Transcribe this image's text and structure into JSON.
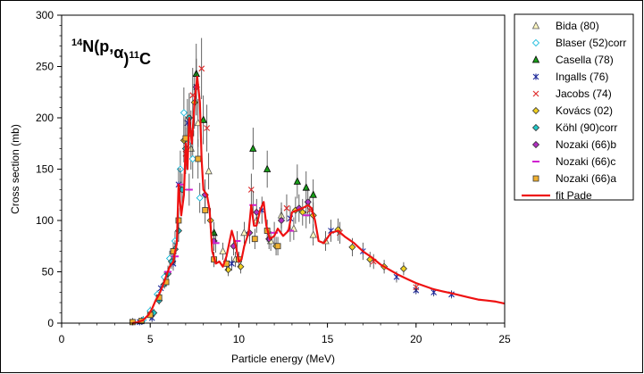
{
  "chart_data": {
    "type": "scatter",
    "title_parts": [
      "14",
      "N(p,",
      "α",
      ")",
      "11",
      "C"
    ],
    "xlabel": "Particle energy (MeV)",
    "ylabel": "Cross section (mb)",
    "xlim": [
      0,
      25
    ],
    "ylim": [
      0,
      300
    ],
    "x_ticks": [
      0,
      5,
      10,
      15,
      20,
      25
    ],
    "y_ticks": [
      0,
      50,
      100,
      150,
      200,
      250,
      300
    ],
    "grid": false,
    "legend_position": "right",
    "series": [
      {
        "name": "Bida (80)",
        "marker": "triangle-open",
        "color": "#b58900",
        "points": [
          [
            7.3,
            170
          ],
          [
            7.7,
            195
          ],
          [
            8.3,
            148
          ],
          [
            9.1,
            70
          ],
          [
            9.8,
            62
          ],
          [
            10.3,
            88
          ],
          [
            11.0,
            100
          ],
          [
            11.8,
            80
          ],
          [
            12.4,
            105
          ],
          [
            13.1,
            92
          ],
          [
            14.2,
            86
          ],
          [
            14.9,
            80
          ]
        ]
      },
      {
        "name": "Blaser (52)corr",
        "marker": "diamond-open",
        "color": "#00b4d8",
        "points": [
          [
            4.6,
            3
          ],
          [
            5.0,
            12
          ],
          [
            5.4,
            28
          ],
          [
            5.8,
            45
          ],
          [
            6.1,
            63
          ],
          [
            6.4,
            80
          ],
          [
            6.7,
            150
          ],
          [
            6.9,
            205
          ],
          [
            7.1,
            175
          ],
          [
            7.4,
            160
          ],
          [
            7.8,
            122
          ]
        ]
      },
      {
        "name": "Casella (78)",
        "marker": "triangle",
        "color": "#1a9e1a",
        "points": [
          [
            7.6,
            243
          ],
          [
            8.0,
            198
          ],
          [
            8.6,
            88
          ],
          [
            10.8,
            170
          ],
          [
            11.6,
            150
          ],
          [
            13.3,
            138
          ],
          [
            13.8,
            132
          ],
          [
            14.2,
            125
          ]
        ]
      },
      {
        "name": "Ingalls (76)",
        "marker": "star",
        "color": "#1f2a9a",
        "points": [
          [
            4.4,
            1
          ],
          [
            5.1,
            5
          ],
          [
            5.6,
            34
          ],
          [
            6.3,
            58
          ],
          [
            6.6,
            135
          ],
          [
            7.1,
            195
          ],
          [
            7.6,
            230
          ],
          [
            9.6,
            58
          ],
          [
            11.3,
            110
          ],
          [
            12.9,
            102
          ],
          [
            15.2,
            90
          ],
          [
            17.0,
            70
          ],
          [
            18.9,
            45
          ],
          [
            20.0,
            32
          ],
          [
            21.0,
            30
          ],
          [
            22.0,
            28
          ]
        ]
      },
      {
        "name": "Jacobs (74)",
        "marker": "cross",
        "color": "#e03030",
        "points": [
          [
            7.0,
            165
          ],
          [
            7.4,
            222
          ],
          [
            7.9,
            248
          ],
          [
            8.2,
            190
          ],
          [
            10.7,
            130
          ],
          [
            12.7,
            112
          ],
          [
            14.0,
            110
          ],
          [
            15.7,
            88
          ],
          [
            17.6,
            60
          ],
          [
            20.0,
            35
          ]
        ]
      },
      {
        "name": "Kovács (02)",
        "marker": "diamond",
        "color": "#f0d020",
        "points": [
          [
            6.9,
            178
          ],
          [
            7.2,
            200
          ],
          [
            7.5,
            215
          ],
          [
            8.4,
            100
          ],
          [
            9.4,
            52
          ],
          [
            10.1,
            55
          ],
          [
            12.1,
            75
          ],
          [
            13.2,
            110
          ],
          [
            13.6,
            108
          ],
          [
            14.2,
            105
          ],
          [
            15.6,
            91
          ],
          [
            16.4,
            74
          ],
          [
            17.4,
            62
          ],
          [
            18.2,
            55
          ],
          [
            19.3,
            53
          ]
        ]
      },
      {
        "name": "Köhl (90)corr",
        "marker": "diamond",
        "color": "#22c8c8",
        "points": [
          [
            5.2,
            10
          ],
          [
            5.5,
            22
          ],
          [
            5.8,
            38
          ],
          [
            6.0,
            48
          ],
          [
            6.2,
            60
          ],
          [
            6.4,
            72
          ],
          [
            6.6,
            90
          ],
          [
            6.8,
            130
          ],
          [
            7.0,
            170
          ],
          [
            7.2,
            200
          ]
        ]
      },
      {
        "name": "Nozaki (66)b",
        "marker": "diamond",
        "color": "#b030c0",
        "points": [
          [
            7.6,
            230
          ],
          [
            8.1,
            125
          ],
          [
            8.6,
            80
          ],
          [
            9.7,
            75
          ],
          [
            10.6,
            88
          ],
          [
            11.0,
            108
          ],
          [
            11.7,
            82
          ],
          [
            12.4,
            100
          ],
          [
            13.4,
            112
          ],
          [
            13.9,
            118
          ]
        ]
      },
      {
        "name": "Nozaki (66)c",
        "marker": "dash",
        "color": "#d020d0",
        "points": [
          [
            6.0,
            50
          ],
          [
            6.4,
            65
          ],
          [
            6.7,
            135
          ],
          [
            7.2,
            130
          ],
          [
            8.7,
            78
          ],
          [
            9.9,
            80
          ],
          [
            10.8,
            115
          ],
          [
            12.0,
            88
          ],
          [
            12.9,
            90
          ],
          [
            13.8,
            105
          ]
        ]
      },
      {
        "name": "Nozaki (66)a",
        "marker": "square",
        "color": "#f0b030",
        "points": [
          [
            4.0,
            1
          ],
          [
            4.5,
            2
          ],
          [
            5.0,
            8
          ],
          [
            5.5,
            25
          ],
          [
            5.9,
            40
          ],
          [
            6.3,
            70
          ],
          [
            6.6,
            100
          ],
          [
            7.0,
            180
          ],
          [
            7.3,
            185
          ],
          [
            7.7,
            160
          ],
          [
            8.1,
            110
          ],
          [
            8.6,
            62
          ],
          [
            9.3,
            58
          ],
          [
            10.0,
            62
          ],
          [
            10.9,
            82
          ],
          [
            11.6,
            90
          ],
          [
            12.2,
            75
          ]
        ]
      }
    ],
    "fit": {
      "name": "fit Pade",
      "color": "#ee1111",
      "points": [
        [
          4.0,
          0
        ],
        [
          4.3,
          1
        ],
        [
          4.6,
          3
        ],
        [
          4.9,
          8
        ],
        [
          5.1,
          14
        ],
        [
          5.3,
          22
        ],
        [
          5.5,
          28
        ],
        [
          5.7,
          36
        ],
        [
          5.9,
          46
        ],
        [
          6.1,
          55
        ],
        [
          6.3,
          60
        ],
        [
          6.5,
          78
        ],
        [
          6.6,
          135
        ],
        [
          6.75,
          105
        ],
        [
          6.9,
          125
        ],
        [
          7.0,
          175
        ],
        [
          7.1,
          150
        ],
        [
          7.2,
          200
        ],
        [
          7.35,
          175
        ],
        [
          7.5,
          215
        ],
        [
          7.65,
          240
        ],
        [
          7.8,
          215
        ],
        [
          7.9,
          160
        ],
        [
          8.0,
          130
        ],
        [
          8.2,
          125
        ],
        [
          8.35,
          110
        ],
        [
          8.5,
          70
        ],
        [
          8.7,
          58
        ],
        [
          8.9,
          60
        ],
        [
          9.1,
          55
        ],
        [
          9.3,
          65
        ],
        [
          9.6,
          90
        ],
        [
          9.8,
          78
        ],
        [
          10.0,
          60
        ],
        [
          10.15,
          62
        ],
        [
          10.3,
          75
        ],
        [
          10.55,
          88
        ],
        [
          10.7,
          115
        ],
        [
          10.85,
          95
        ],
        [
          11.0,
          95
        ],
        [
          11.2,
          110
        ],
        [
          11.4,
          118
        ],
        [
          11.55,
          95
        ],
        [
          11.75,
          82
        ],
        [
          12.0,
          85
        ],
        [
          12.2,
          92
        ],
        [
          12.5,
          85
        ],
        [
          12.8,
          90
        ],
        [
          13.0,
          108
        ],
        [
          13.3,
          110
        ],
        [
          13.6,
          112
        ],
        [
          13.9,
          115
        ],
        [
          14.1,
          112
        ],
        [
          14.3,
          100
        ],
        [
          14.5,
          80
        ],
        [
          14.8,
          78
        ],
        [
          15.2,
          88
        ],
        [
          15.6,
          90
        ],
        [
          16.0,
          84
        ],
        [
          16.5,
          78
        ],
        [
          17.0,
          70
        ],
        [
          17.5,
          64
        ],
        [
          18.0,
          57
        ],
        [
          18.5,
          52
        ],
        [
          19.0,
          47
        ],
        [
          19.5,
          43
        ],
        [
          20.0,
          39
        ],
        [
          20.5,
          36
        ],
        [
          21.0,
          33
        ],
        [
          21.5,
          31
        ],
        [
          22.0,
          29
        ],
        [
          22.5,
          27
        ],
        [
          23.0,
          25
        ],
        [
          23.5,
          23
        ],
        [
          24.0,
          22
        ],
        [
          24.5,
          21
        ],
        [
          25.0,
          19
        ]
      ]
    }
  }
}
